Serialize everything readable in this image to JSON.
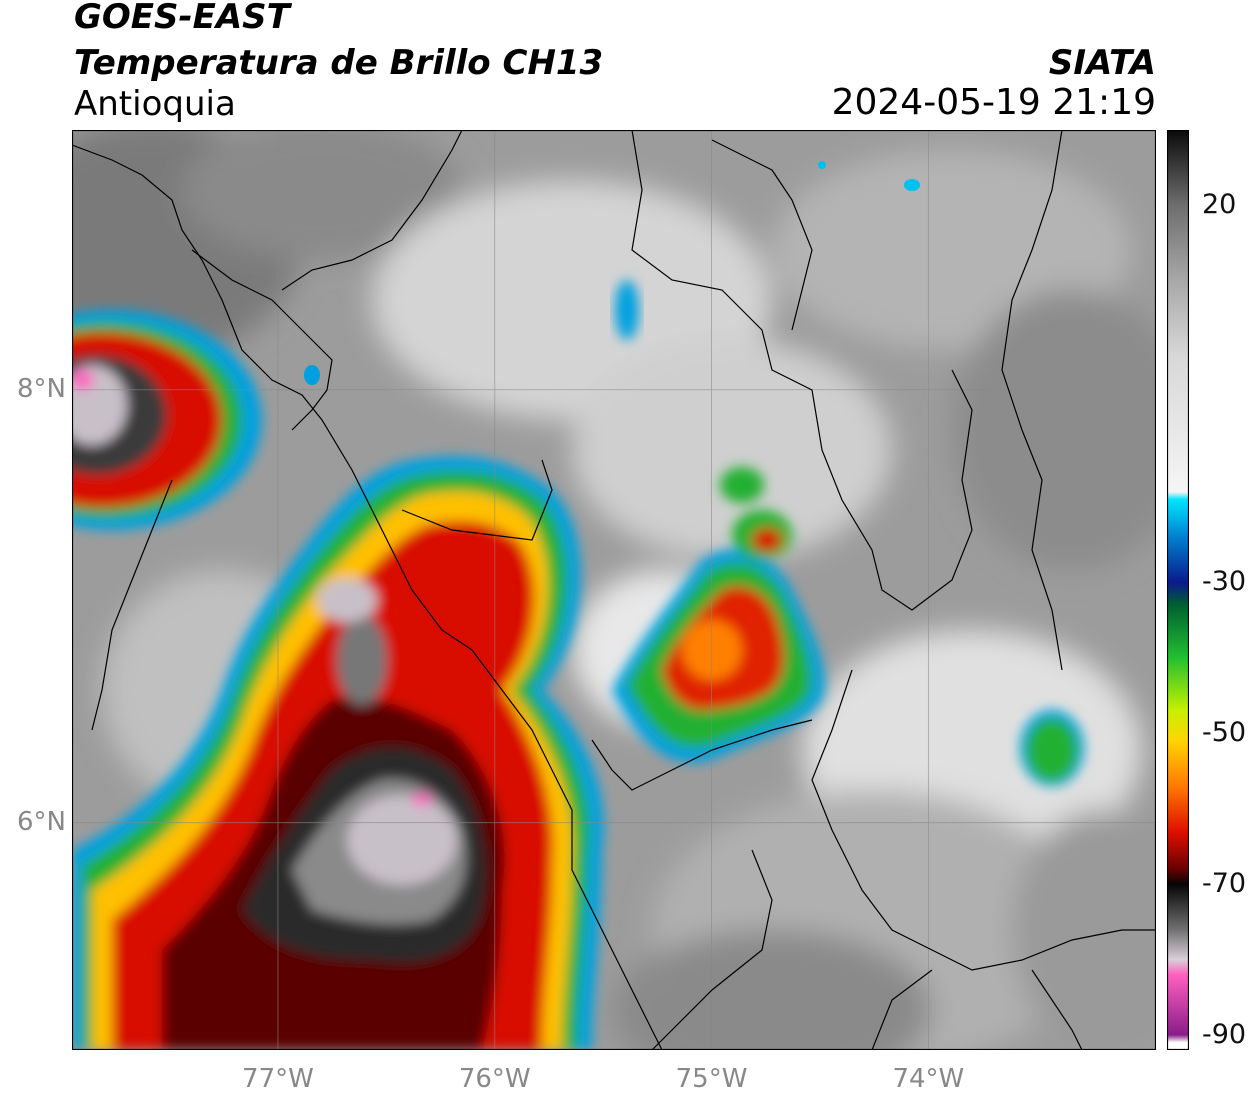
{
  "header": {
    "satellite": "GOES-EAST",
    "product": "Temperatura de Brillo CH13",
    "region": "Antioquia",
    "agency": "SIATA",
    "datetime": "2024-05-19 21:19"
  },
  "map": {
    "lon_range": [
      -77.95,
      -72.95
    ],
    "lat_range": [
      4.95,
      9.2
    ],
    "lon_ticks": [
      {
        "value": -77,
        "label": "77°W"
      },
      {
        "value": -76,
        "label": "76°W"
      },
      {
        "value": -75,
        "label": "75°W"
      },
      {
        "value": -74,
        "label": "74°W"
      }
    ],
    "lat_ticks": [
      {
        "value": 8,
        "label": "8°N"
      },
      {
        "value": 6,
        "label": "6°N"
      }
    ],
    "grid": true
  },
  "colorbar": {
    "min": -92,
    "max": 30,
    "ticks": [
      {
        "value": 20,
        "label": "20"
      },
      {
        "value": -30,
        "label": "-30"
      },
      {
        "value": -50,
        "label": "-50"
      },
      {
        "value": -70,
        "label": "-70"
      },
      {
        "value": -90,
        "label": "-90"
      }
    ],
    "stops": [
      {
        "value": 30,
        "color": "#0a0a0a"
      },
      {
        "value": 20,
        "color": "#6e6e6e"
      },
      {
        "value": 10,
        "color": "#a8a8a8"
      },
      {
        "value": 0,
        "color": "#d8d8d8"
      },
      {
        "value": -18,
        "color": "#f5f5f5"
      },
      {
        "value": -19,
        "color": "#00e5ff"
      },
      {
        "value": -24,
        "color": "#0080d0"
      },
      {
        "value": -30,
        "color": "#0a1a8c"
      },
      {
        "value": -33,
        "color": "#006030"
      },
      {
        "value": -40,
        "color": "#22c030"
      },
      {
        "value": -47,
        "color": "#c8f000"
      },
      {
        "value": -51,
        "color": "#ffd400"
      },
      {
        "value": -57,
        "color": "#ff7a00"
      },
      {
        "value": -63,
        "color": "#e01000"
      },
      {
        "value": -68,
        "color": "#6a0000"
      },
      {
        "value": -70,
        "color": "#050505"
      },
      {
        "value": -76,
        "color": "#707070"
      },
      {
        "value": -80,
        "color": "#d8d0d8"
      },
      {
        "value": -82,
        "color": "#ff60c0"
      },
      {
        "value": -90,
        "color": "#8a1c8a"
      },
      {
        "value": -91,
        "color": "#ffffff"
      }
    ]
  }
}
